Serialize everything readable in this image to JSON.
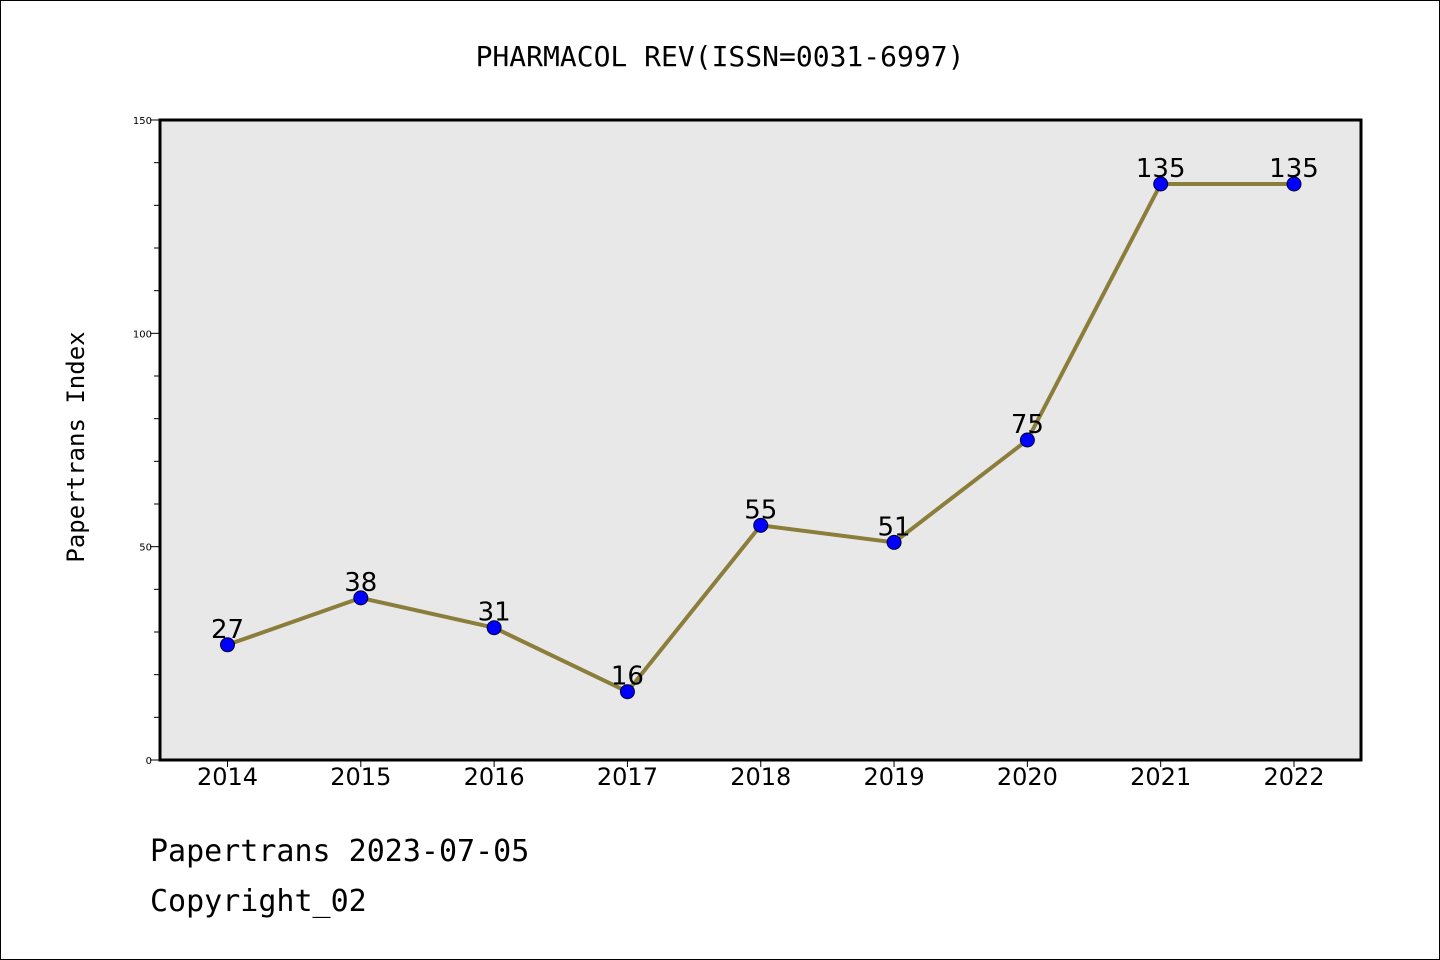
{
  "chart_data": {
    "type": "line",
    "title": "PHARMACOL REV(ISSN=0031-6997)",
    "xlabel": "",
    "ylabel": "Papertrans Index",
    "categories": [
      "2014",
      "2015",
      "2016",
      "2017",
      "2018",
      "2019",
      "2020",
      "2021",
      "2022"
    ],
    "series": [
      {
        "values": [
          27,
          38,
          31,
          16,
          55,
          51,
          75,
          135,
          135
        ]
      }
    ],
    "data_labels": [
      "27",
      "38",
      "31",
      "16",
      "55",
      "51",
      "75",
      "135",
      "135"
    ],
    "ylim": [
      0,
      150
    ],
    "yticks": [
      "0",
      "50",
      "100",
      "150"
    ],
    "grid": false,
    "line_color": "#8B7D3A",
    "marker_color": "#0000FF",
    "plot_background": "#E8E8E8"
  },
  "footer": {
    "date_line": "Papertrans 2023-07-05",
    "copyright": "Copyright_02"
  }
}
